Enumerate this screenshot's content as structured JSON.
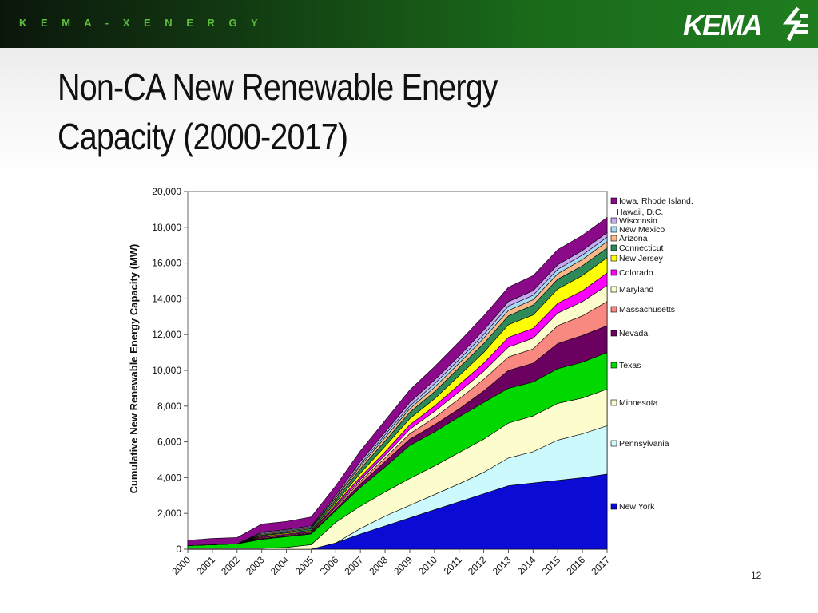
{
  "header": {
    "brand_text": "K E M A - X E N E R G Y",
    "logo_text": "KEMA"
  },
  "slide": {
    "title_line1": "Non-CA New Renewable Energy",
    "title_line2": "Capacity (2000-2017)",
    "page_number": "12"
  },
  "colors": {
    "topbar_dark": "#0b160b",
    "topbar_green": "#1f7d1f",
    "brand_green": "#5ebd3b"
  },
  "chart_data": {
    "type": "area",
    "stacked": true,
    "title": "",
    "xlabel": "",
    "ylabel": "Cumulative New Renewable Energy Capacity (MW)",
    "ylim": [
      0,
      20000
    ],
    "yticks": [
      "0",
      "2,000",
      "4,000",
      "6,000",
      "8,000",
      "10,000",
      "12,000",
      "14,000",
      "16,000",
      "18,000",
      "20,000"
    ],
    "categories": [
      "2000",
      "2001",
      "2002",
      "2003",
      "2004",
      "2005",
      "2006",
      "2007",
      "2008",
      "2009",
      "2010",
      "2011",
      "2012",
      "2013",
      "2014",
      "2015",
      "2016",
      "2017"
    ],
    "legend_position": "right",
    "grid": false,
    "series": [
      {
        "name": "New York",
        "color": "#0b0bd6",
        "values": [
          0,
          0,
          0,
          0,
          0,
          0,
          350,
          850,
          1300,
          1750,
          2200,
          2650,
          3100,
          3550,
          3700,
          3850,
          4000,
          4200
        ]
      },
      {
        "name": "Pennsylvania",
        "color": "#ccfafc",
        "values": [
          0,
          0,
          0,
          0,
          0,
          0,
          0,
          300,
          550,
          700,
          850,
          1000,
          1200,
          1550,
          1750,
          2250,
          2450,
          2700
        ]
      },
      {
        "name": "Minnesota",
        "color": "#fcfccc",
        "values": [
          50,
          50,
          50,
          50,
          100,
          250,
          1150,
          1250,
          1350,
          1500,
          1600,
          1750,
          1850,
          1950,
          2000,
          2050,
          2000,
          2050
        ]
      },
      {
        "name": "Texas",
        "color": "#00d800",
        "values": [
          150,
          200,
          250,
          500,
          600,
          600,
          650,
          1050,
          1400,
          1850,
          1900,
          2000,
          2050,
          1950,
          1900,
          1950,
          2000,
          2050
        ]
      },
      {
        "name": "Nevada",
        "color": "#6b0060",
        "values": [
          0,
          0,
          0,
          50,
          50,
          50,
          100,
          200,
          300,
          350,
          400,
          450,
          650,
          1000,
          1050,
          1400,
          1500,
          1500
        ]
      },
      {
        "name": "Massachusetts",
        "color": "#f88880",
        "values": [
          0,
          0,
          0,
          50,
          50,
          50,
          100,
          150,
          200,
          300,
          400,
          550,
          650,
          750,
          800,
          1000,
          1100,
          1350
        ]
      },
      {
        "name": "Maryland",
        "color": "#fcfccc",
        "values": [
          0,
          0,
          0,
          0,
          0,
          0,
          50,
          100,
          150,
          250,
          350,
          400,
          450,
          550,
          600,
          700,
          800,
          900
        ]
      },
      {
        "name": "Colorado",
        "color": "#ff00ff",
        "values": [
          0,
          0,
          0,
          50,
          50,
          50,
          100,
          150,
          200,
          250,
          300,
          400,
          450,
          550,
          550,
          550,
          600,
          700
        ]
      },
      {
        "name": "New Jersey",
        "color": "#ffff00",
        "values": [
          0,
          0,
          0,
          50,
          50,
          50,
          100,
          200,
          300,
          350,
          400,
          500,
          600,
          700,
          750,
          800,
          850,
          850
        ]
      },
      {
        "name": "Connecticut",
        "color": "#2e8a58",
        "values": [
          0,
          0,
          0,
          50,
          50,
          100,
          150,
          250,
          300,
          350,
          400,
          450,
          500,
          500,
          550,
          550,
          550,
          550
        ]
      },
      {
        "name": "Arizona",
        "color": "#f8b888",
        "values": [
          0,
          0,
          0,
          50,
          50,
          50,
          100,
          150,
          200,
          200,
          250,
          250,
          300,
          300,
          300,
          300,
          350,
          350
        ]
      },
      {
        "name": "New Mexico",
        "color": "#a8d8f8",
        "values": [
          0,
          0,
          0,
          50,
          50,
          50,
          50,
          100,
          150,
          150,
          200,
          200,
          200,
          250,
          250,
          250,
          250,
          250
        ]
      },
      {
        "name": "Wisconsin",
        "color": "#c8a8f0",
        "values": [
          0,
          0,
          0,
          50,
          50,
          50,
          100,
          150,
          150,
          200,
          200,
          200,
          250,
          250,
          250,
          250,
          250,
          250
        ]
      },
      {
        "name": "Iowa, Rhode Island, Hawaii, D.C.",
        "color": "#8a0a8a",
        "values": [
          300,
          350,
          350,
          450,
          450,
          500,
          550,
          600,
          650,
          700,
          750,
          800,
          800,
          800,
          850,
          850,
          850,
          850
        ]
      }
    ]
  }
}
